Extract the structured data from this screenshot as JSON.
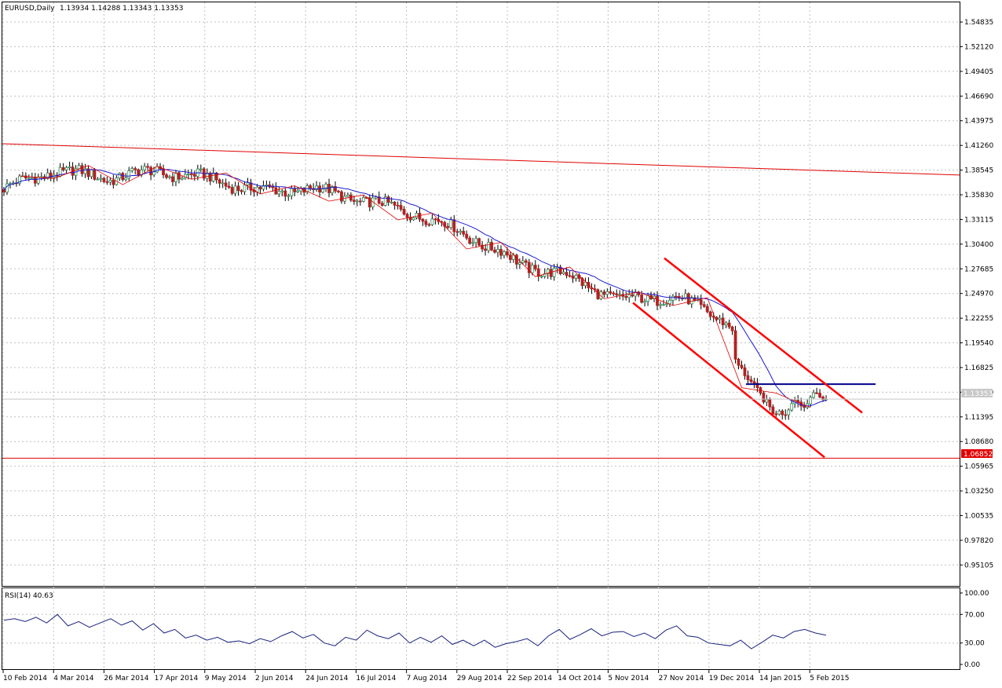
{
  "header": {
    "symbol_timeframe": "EURUSD,Daily",
    "ohlc": "1.13934 1.14288 1.13343 1.13353"
  },
  "indicator": {
    "label": "RSI(14) 40.63"
  },
  "price_axis": {
    "ticks": [
      "1.54835",
      "1.52120",
      "1.49405",
      "1.46690",
      "1.43975",
      "1.41260",
      "1.38545",
      "1.35830",
      "1.33115",
      "1.30400",
      "1.27685",
      "1.24970",
      "1.22255",
      "1.19540",
      "1.16825",
      "1.14110",
      "1.11395",
      "1.08680",
      "1.05965",
      "1.03250",
      "1.00535",
      "0.97820",
      "0.95105"
    ],
    "current_price_label": "1.13353",
    "level_label": "1.06852"
  },
  "rsi_axis": {
    "ticks": [
      "100.00",
      "70.00",
      "30.00",
      "0.00"
    ]
  },
  "time_axis": {
    "labels": [
      "10 Feb 2014",
      "4 Mar 2014",
      "26 Mar 2014",
      "17 Apr 2014",
      "9 May 2014",
      "2 Jun 2014",
      "24 Jun 2014",
      "16 Jul 2014",
      "7 Aug 2014",
      "29 Aug 2014",
      "22 Sep 2014",
      "14 Oct 2014",
      "5 Nov 2014",
      "27 Nov 2014",
      "19 Dec 2014",
      "14 Jan 2015",
      "5 Feb 2015"
    ]
  },
  "colors": {
    "bull": "#2e8b57",
    "bear": "#b22222",
    "ma": "#1c1cd2",
    "zigzag": "#e00000",
    "channel": "#ff0000",
    "support": "#e00000",
    "resistance": "#00008b",
    "rsi": "#1a237e",
    "grid": "#c0c0c0"
  },
  "chart_data": {
    "type": "candlestick",
    "symbol": "EURUSD",
    "timeframe": "Daily",
    "current": {
      "open": 1.13934,
      "high": 1.14288,
      "low": 1.13343,
      "close": 1.13353
    },
    "ylim": [
      0.93,
      1.56
    ],
    "horizontal_level": 1.06852,
    "resistance_level": 1.15,
    "price_path": [
      [
        "10 Feb 2014",
        1.365
      ],
      [
        "4 Mar 2014",
        1.385
      ],
      [
        "26 Mar 2014",
        1.377
      ],
      [
        "17 Apr 2014",
        1.384
      ],
      [
        "9 May 2014",
        1.376
      ],
      [
        "2 Jun 2014",
        1.362
      ],
      [
        "24 Jun 2014",
        1.365
      ],
      [
        "16 Jul 2014",
        1.352
      ],
      [
        "7 Aug 2014",
        1.338
      ],
      [
        "29 Aug 2014",
        1.315
      ],
      [
        "22 Sep 2014",
        1.283
      ],
      [
        "14 Oct 2014",
        1.268
      ],
      [
        "5 Nov 2014",
        1.242
      ],
      [
        "27 Nov 2014",
        1.247
      ],
      [
        "19 Dec 2014",
        1.222
      ],
      [
        "14 Jan 2015",
        1.171
      ],
      [
        "5 Feb 2015",
        1.134
      ]
    ],
    "rsi": {
      "period": 14,
      "last": 40.63,
      "ylim": [
        0,
        100
      ],
      "levels": [
        30,
        70
      ],
      "values": [
        62,
        64,
        60,
        66,
        58,
        70,
        54,
        60,
        52,
        58,
        64,
        55,
        61,
        48,
        57,
        44,
        49,
        37,
        41,
        34,
        38,
        31,
        33,
        29,
        36,
        32,
        40,
        46,
        37,
        42,
        30,
        26,
        38,
        34,
        48,
        40,
        36,
        44,
        30,
        38,
        31,
        40,
        28,
        34,
        26,
        34,
        24,
        29,
        32,
        36,
        26,
        40,
        49,
        35,
        42,
        50,
        40,
        45,
        46,
        39,
        44,
        36,
        48,
        54,
        40,
        38,
        30,
        28,
        26,
        34,
        22,
        31,
        41,
        37,
        46,
        49,
        44,
        41
      ]
    }
  }
}
